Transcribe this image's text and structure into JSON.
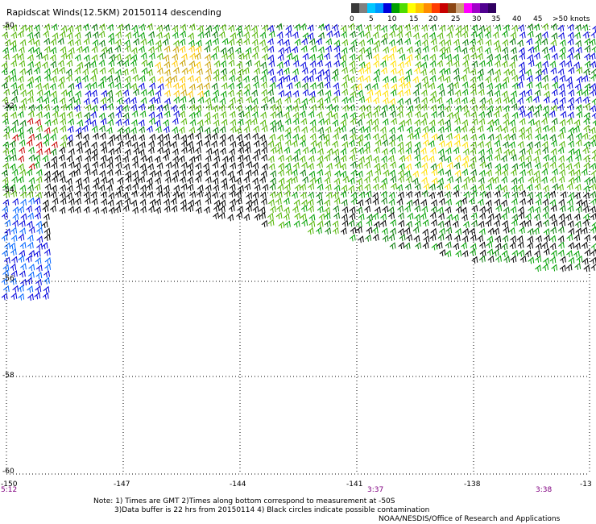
{
  "title": "Rapidscat Winds(12.5KM) 20150114 descending",
  "legend": {
    "colors": [
      "#3a3a3a",
      "#808080",
      "#00c8ff",
      "#0096ff",
      "#0000dc",
      "#00a000",
      "#50dc00",
      "#ffff00",
      "#ffc800",
      "#ff8c00",
      "#ff3c00",
      "#c80000",
      "#8b4513",
      "#c8a078",
      "#ff00ff",
      "#a000c8",
      "#500090",
      "#300060"
    ],
    "labels": [
      "0",
      "5",
      "10",
      "15",
      "20",
      "25",
      "30",
      "35",
      "40",
      "45",
      ">50 knots"
    ]
  },
  "lat_labels": [
    "-50",
    "-52",
    "-54",
    "-56",
    "-58",
    "-60"
  ],
  "lon_labels": [
    "-150",
    "-147",
    "-144",
    "-141",
    "-138",
    "-13"
  ],
  "time_labels": [
    "5:12",
    "3:37",
    "3:38"
  ],
  "notes": {
    "line1": "Note: 1) Times are GMT 2)Times along bottom correspond to measurement at -50S",
    "line2": "3)Data buffer is 22 hrs from 20150114 4) Black circles indicate possible contamination",
    "line3": "NOAA/NESDIS/Office of Research and Applications"
  }
}
